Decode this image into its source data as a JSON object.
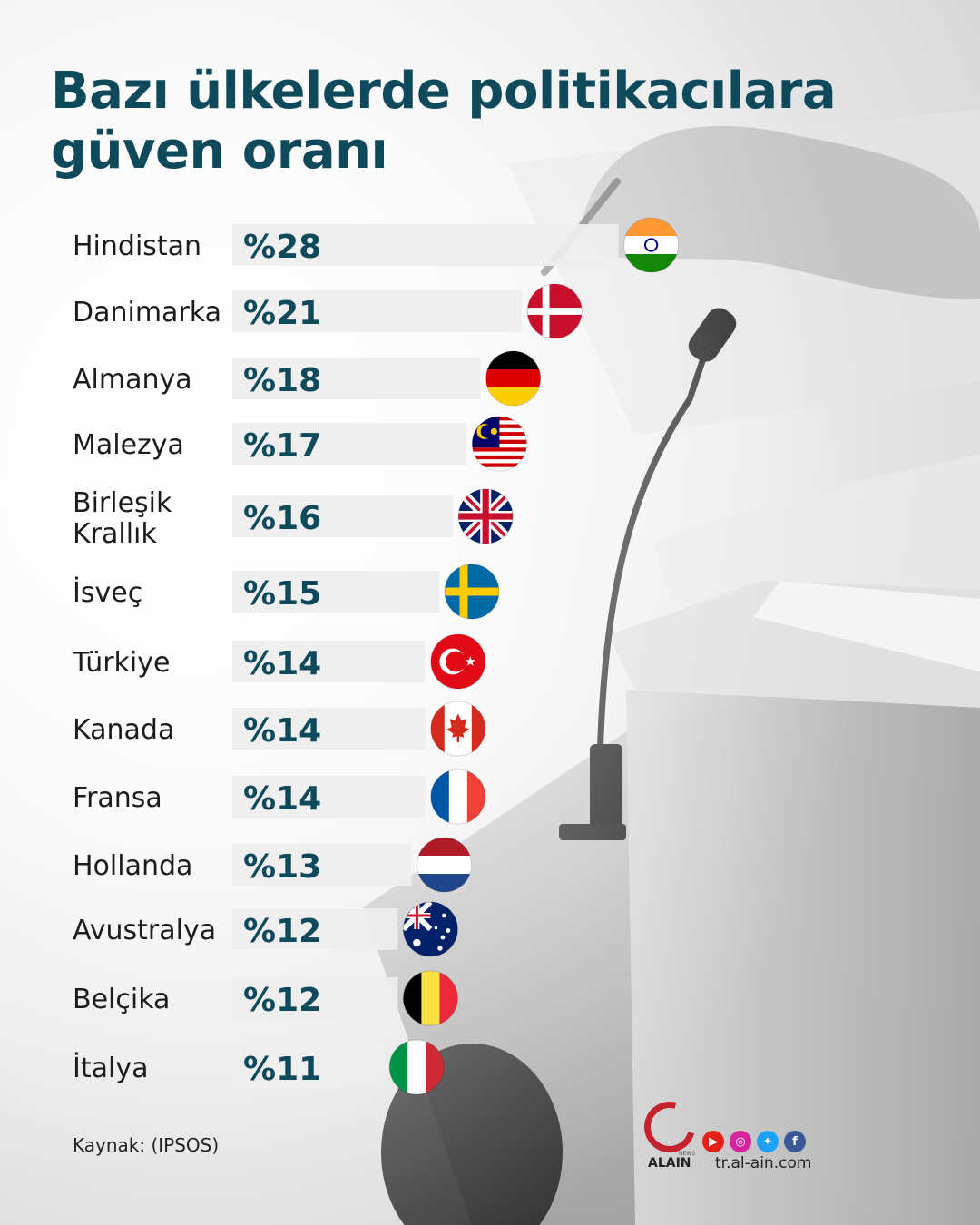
{
  "title": {
    "line1": "Bazı ülkelerde politikacılara",
    "line2": "güven oranı"
  },
  "source": "Kaynak: (IPSOS)",
  "brand": {
    "logo_text": "ALAIN",
    "logo_small": "NEWS",
    "website": "tr.al-ain.com",
    "socials": [
      {
        "name": "youtube-icon",
        "color": "#e62117",
        "glyph": "▶"
      },
      {
        "name": "instagram-icon",
        "color": "#d6249f",
        "glyph": "◎"
      },
      {
        "name": "twitter-icon",
        "color": "#1da1f2",
        "glyph": "✦"
      },
      {
        "name": "facebook-icon",
        "color": "#3b5998",
        "glyph": "f"
      }
    ]
  },
  "colors": {
    "title": "#0e4a5c",
    "value_text": "#0e4a5c",
    "bar": "#eeeeee"
  },
  "chart_data": {
    "type": "bar",
    "orientation": "horizontal",
    "title": "Bazı ülkelerde politikacılara güven oranı",
    "unit_prefix": "%",
    "categories": [
      "Hindistan",
      "Danimarka",
      "Almanya",
      "Malezya",
      "Birleşik Krallık",
      "İsveç",
      "Türkiye",
      "Kanada",
      "Fransa",
      "Hollanda",
      "Avustralya",
      "Belçika",
      "İtalya"
    ],
    "category_lines": [
      [
        "Hindistan"
      ],
      [
        "Danimarka"
      ],
      [
        "Almanya"
      ],
      [
        "Malezya"
      ],
      [
        "Birleşik",
        "Krallık"
      ],
      [
        "İsveç"
      ],
      [
        "Türkiye"
      ],
      [
        "Kanada"
      ],
      [
        "Fransa"
      ],
      [
        "Hollanda"
      ],
      [
        "Avustralya"
      ],
      [
        "Belçika"
      ],
      [
        "İtalya"
      ]
    ],
    "values": [
      28,
      21,
      18,
      17,
      16,
      15,
      14,
      14,
      14,
      13,
      12,
      12,
      11
    ],
    "value_labels": [
      "%28",
      "%21",
      "%18",
      "%17",
      "%16",
      "%15",
      "%14",
      "%14",
      "%14",
      "%13",
      "%12",
      "%12",
      "%11"
    ],
    "flags": [
      "india-flag",
      "denmark-flag",
      "germany-flag",
      "malaysia-flag",
      "uk-flag",
      "sweden-flag",
      "turkey-flag",
      "canada-flag",
      "france-flag",
      "netherlands-flag",
      "australia-flag",
      "belgium-flag",
      "italy-flag"
    ],
    "grid": false,
    "legend": "none"
  }
}
